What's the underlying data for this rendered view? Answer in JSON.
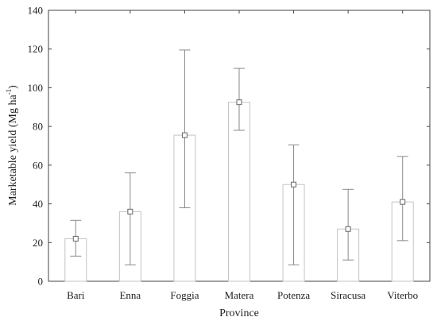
{
  "chart_data": {
    "type": "bar",
    "xlabel": "Province",
    "ylabel": "Marketable yield (Mg ha",
    "ylabel_superscript": "-1",
    "ylabel_close": ")",
    "categories": [
      "Bari",
      "Enna",
      "Foggia",
      "Matera",
      "Potenza",
      "Siracusa",
      "Viterbo"
    ],
    "series": [
      {
        "values": [
          22,
          36,
          75.5,
          92.5,
          50,
          27,
          41
        ],
        "error_low": [
          13,
          8.5,
          38,
          78,
          8.5,
          11,
          21
        ],
        "error_high": [
          31.5,
          56,
          119.5,
          110,
          70.5,
          47.5,
          64.5
        ]
      }
    ],
    "ylim": [
      0,
      140
    ],
    "yticks": [
      0,
      20,
      40,
      60,
      80,
      100,
      120,
      140
    ],
    "grid": false,
    "colors": {
      "bar_fill": "#ffffff",
      "bar_stroke": "#c4c4c4",
      "error_bar": "#8a8a8a",
      "axis": "#444444"
    }
  }
}
